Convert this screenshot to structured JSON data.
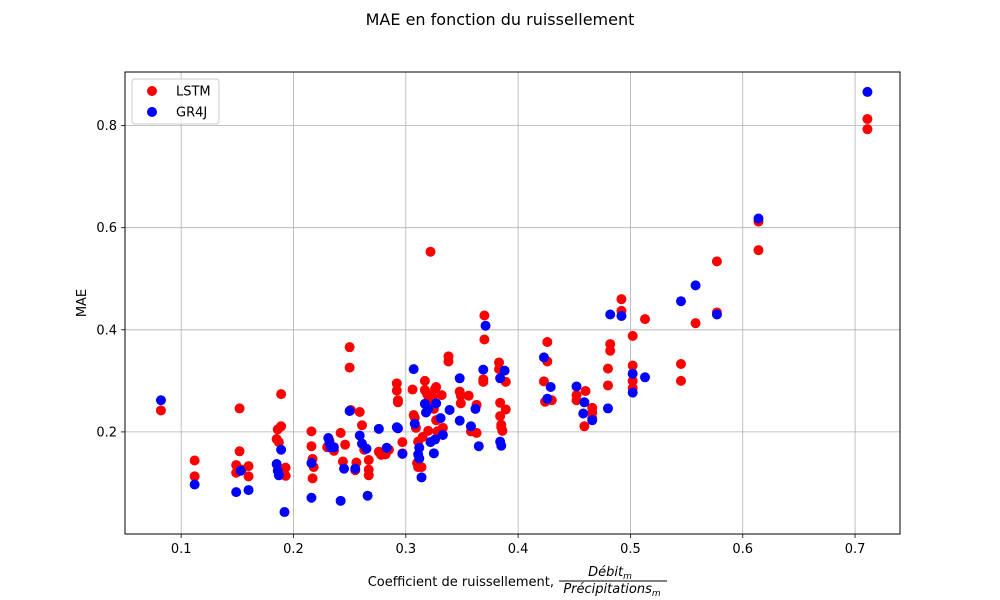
{
  "chart_data": {
    "type": "scatter",
    "title": "MAE en fonction du ruissellement",
    "xlabel": {
      "prefix": "Coefficient de ruissellement, ",
      "numerator": "Débit",
      "numerator_sub": "m",
      "denominator": "Précipitations",
      "denominator_sub": "m"
    },
    "ylabel": "MAE",
    "xlim": [
      0.05,
      0.74
    ],
    "ylim": [
      0.0,
      0.905
    ],
    "xticks": [
      0.1,
      0.2,
      0.3,
      0.4,
      0.5,
      0.6,
      0.7
    ],
    "yticks": [
      0.2,
      0.4,
      0.6,
      0.8
    ],
    "grid": true,
    "legend_position": "top-left",
    "series": [
      {
        "name": "LSTM",
        "color": "#ff0000",
        "points": [
          [
            0.082,
            0.242
          ],
          [
            0.112,
            0.113
          ],
          [
            0.112,
            0.144
          ],
          [
            0.149,
            0.12
          ],
          [
            0.149,
            0.135
          ],
          [
            0.152,
            0.162
          ],
          [
            0.152,
            0.246
          ],
          [
            0.154,
            0.126
          ],
          [
            0.16,
            0.113
          ],
          [
            0.16,
            0.133
          ],
          [
            0.185,
            0.186
          ],
          [
            0.186,
            0.205
          ],
          [
            0.187,
            0.18
          ],
          [
            0.189,
            0.274
          ],
          [
            0.189,
            0.211
          ],
          [
            0.191,
            0.118
          ],
          [
            0.193,
            0.13
          ],
          [
            0.193,
            0.114
          ],
          [
            0.216,
            0.201
          ],
          [
            0.216,
            0.172
          ],
          [
            0.217,
            0.147
          ],
          [
            0.217,
            0.109
          ],
          [
            0.218,
            0.131
          ],
          [
            0.23,
            0.17
          ],
          [
            0.232,
            0.183
          ],
          [
            0.236,
            0.163
          ],
          [
            0.242,
            0.198
          ],
          [
            0.244,
            0.142
          ],
          [
            0.246,
            0.175
          ],
          [
            0.25,
            0.366
          ],
          [
            0.25,
            0.326
          ],
          [
            0.251,
            0.243
          ],
          [
            0.255,
            0.125
          ],
          [
            0.256,
            0.14
          ],
          [
            0.259,
            0.239
          ],
          [
            0.261,
            0.213
          ],
          [
            0.263,
            0.165
          ],
          [
            0.267,
            0.145
          ],
          [
            0.267,
            0.115
          ],
          [
            0.267,
            0.126
          ],
          [
            0.276,
            0.161
          ],
          [
            0.278,
            0.155
          ],
          [
            0.282,
            0.156
          ],
          [
            0.285,
            0.165
          ],
          [
            0.292,
            0.295
          ],
          [
            0.292,
            0.281
          ],
          [
            0.293,
            0.262
          ],
          [
            0.293,
            0.258
          ],
          [
            0.297,
            0.18
          ],
          [
            0.297,
            0.158
          ],
          [
            0.306,
            0.283
          ],
          [
            0.307,
            0.233
          ],
          [
            0.308,
            0.228
          ],
          [
            0.309,
            0.208
          ],
          [
            0.31,
            0.139
          ],
          [
            0.311,
            0.131
          ],
          [
            0.311,
            0.181
          ],
          [
            0.314,
            0.131
          ],
          [
            0.315,
            0.19
          ],
          [
            0.317,
            0.3
          ],
          [
            0.317,
            0.282
          ],
          [
            0.319,
            0.274
          ],
          [
            0.32,
            0.261
          ],
          [
            0.32,
            0.202
          ],
          [
            0.322,
            0.553
          ],
          [
            0.324,
            0.268
          ],
          [
            0.325,
            0.245
          ],
          [
            0.326,
            0.284
          ],
          [
            0.327,
            0.288
          ],
          [
            0.327,
            0.223
          ],
          [
            0.328,
            0.201
          ],
          [
            0.33,
            0.196
          ],
          [
            0.332,
            0.272
          ],
          [
            0.333,
            0.208
          ],
          [
            0.338,
            0.348
          ],
          [
            0.338,
            0.338
          ],
          [
            0.348,
            0.279
          ],
          [
            0.349,
            0.271
          ],
          [
            0.349,
            0.256
          ],
          [
            0.356,
            0.271
          ],
          [
            0.358,
            0.201
          ],
          [
            0.363,
            0.253
          ],
          [
            0.363,
            0.198
          ],
          [
            0.37,
            0.428
          ],
          [
            0.37,
            0.381
          ],
          [
            0.369,
            0.303
          ],
          [
            0.369,
            0.298
          ],
          [
            0.383,
            0.336
          ],
          [
            0.383,
            0.323
          ],
          [
            0.384,
            0.257
          ],
          [
            0.384,
            0.231
          ],
          [
            0.385,
            0.214
          ],
          [
            0.385,
            0.209
          ],
          [
            0.386,
            0.202
          ],
          [
            0.389,
            0.298
          ],
          [
            0.389,
            0.244
          ],
          [
            0.423,
            0.299
          ],
          [
            0.424,
            0.259
          ],
          [
            0.426,
            0.376
          ],
          [
            0.426,
            0.338
          ],
          [
            0.43,
            0.262
          ],
          [
            0.452,
            0.272
          ],
          [
            0.452,
            0.262
          ],
          [
            0.459,
            0.211
          ],
          [
            0.46,
            0.28
          ],
          [
            0.466,
            0.247
          ],
          [
            0.466,
            0.227
          ],
          [
            0.466,
            0.238
          ],
          [
            0.48,
            0.324
          ],
          [
            0.48,
            0.291
          ],
          [
            0.482,
            0.372
          ],
          [
            0.482,
            0.359
          ],
          [
            0.492,
            0.46
          ],
          [
            0.492,
            0.437
          ],
          [
            0.502,
            0.388
          ],
          [
            0.502,
            0.33
          ],
          [
            0.502,
            0.3
          ],
          [
            0.502,
            0.286
          ],
          [
            0.513,
            0.421
          ],
          [
            0.545,
            0.333
          ],
          [
            0.545,
            0.3
          ],
          [
            0.558,
            0.413
          ],
          [
            0.577,
            0.534
          ],
          [
            0.577,
            0.434
          ],
          [
            0.614,
            0.612
          ],
          [
            0.614,
            0.556
          ],
          [
            0.711,
            0.813
          ],
          [
            0.711,
            0.793
          ]
        ]
      },
      {
        "name": "GR4J",
        "color": "#0000ff",
        "points": [
          [
            0.082,
            0.262
          ],
          [
            0.112,
            0.097
          ],
          [
            0.149,
            0.082
          ],
          [
            0.153,
            0.124
          ],
          [
            0.16,
            0.086
          ],
          [
            0.185,
            0.137
          ],
          [
            0.186,
            0.124
          ],
          [
            0.187,
            0.115
          ],
          [
            0.189,
            0.165
          ],
          [
            0.192,
            0.043
          ],
          [
            0.216,
            0.139
          ],
          [
            0.216,
            0.071
          ],
          [
            0.231,
            0.188
          ],
          [
            0.232,
            0.179
          ],
          [
            0.233,
            0.17
          ],
          [
            0.236,
            0.17
          ],
          [
            0.242,
            0.065
          ],
          [
            0.245,
            0.128
          ],
          [
            0.25,
            0.241
          ],
          [
            0.255,
            0.128
          ],
          [
            0.259,
            0.193
          ],
          [
            0.261,
            0.177
          ],
          [
            0.265,
            0.167
          ],
          [
            0.266,
            0.075
          ],
          [
            0.276,
            0.206
          ],
          [
            0.283,
            0.169
          ],
          [
            0.292,
            0.209
          ],
          [
            0.293,
            0.207
          ],
          [
            0.297,
            0.157
          ],
          [
            0.307,
            0.323
          ],
          [
            0.308,
            0.216
          ],
          [
            0.311,
            0.156
          ],
          [
            0.312,
            0.148
          ],
          [
            0.312,
            0.169
          ],
          [
            0.314,
            0.111
          ],
          [
            0.317,
            0.255
          ],
          [
            0.318,
            0.238
          ],
          [
            0.32,
            0.245
          ],
          [
            0.322,
            0.18
          ],
          [
            0.325,
            0.158
          ],
          [
            0.326,
            0.185
          ],
          [
            0.327,
            0.256
          ],
          [
            0.331,
            0.227
          ],
          [
            0.333,
            0.194
          ],
          [
            0.339,
            0.243
          ],
          [
            0.348,
            0.305
          ],
          [
            0.348,
            0.222
          ],
          [
            0.358,
            0.211
          ],
          [
            0.362,
            0.245
          ],
          [
            0.365,
            0.172
          ],
          [
            0.369,
            0.322
          ],
          [
            0.371,
            0.408
          ],
          [
            0.384,
            0.305
          ],
          [
            0.384,
            0.181
          ],
          [
            0.385,
            0.173
          ],
          [
            0.388,
            0.32
          ],
          [
            0.423,
            0.346
          ],
          [
            0.426,
            0.265
          ],
          [
            0.429,
            0.288
          ],
          [
            0.452,
            0.289
          ],
          [
            0.458,
            0.236
          ],
          [
            0.459,
            0.258
          ],
          [
            0.466,
            0.223
          ],
          [
            0.48,
            0.246
          ],
          [
            0.482,
            0.43
          ],
          [
            0.492,
            0.427
          ],
          [
            0.502,
            0.314
          ],
          [
            0.502,
            0.277
          ],
          [
            0.513,
            0.307
          ],
          [
            0.545,
            0.456
          ],
          [
            0.558,
            0.487
          ],
          [
            0.577,
            0.43
          ],
          [
            0.614,
            0.618
          ],
          [
            0.711,
            0.866
          ]
        ]
      }
    ]
  }
}
